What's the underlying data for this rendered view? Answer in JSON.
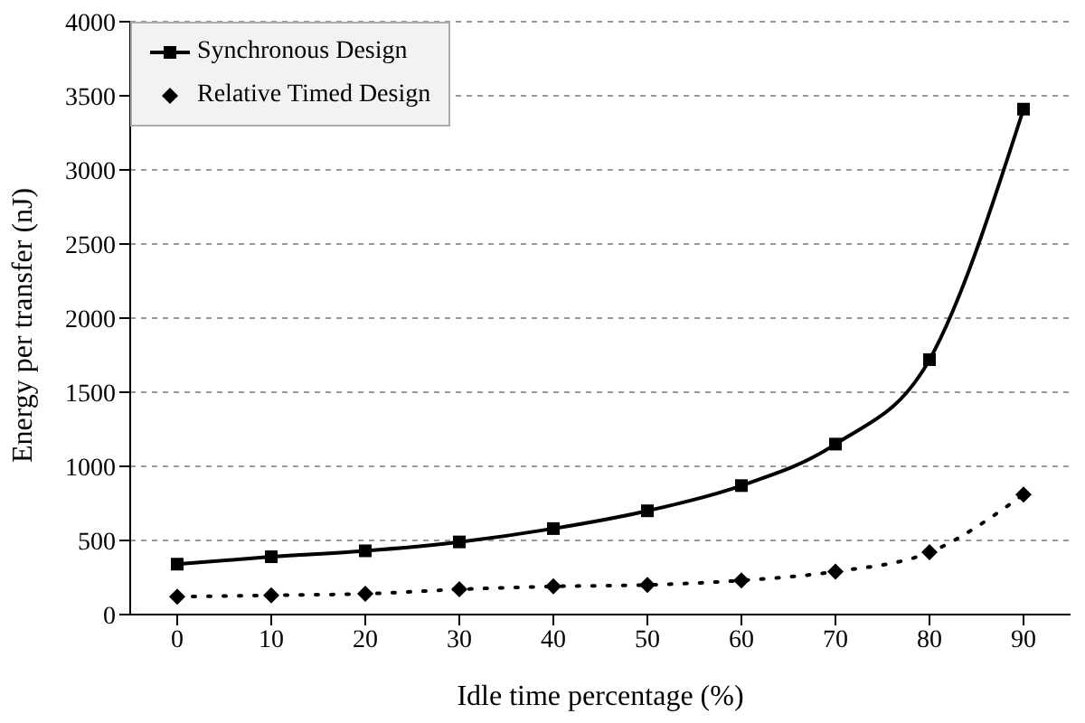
{
  "chart_data": {
    "type": "line",
    "xlabel": "Idle time percentage (%)",
    "ylabel": "Energy per transfer (nJ)",
    "categories": [
      "0",
      "10",
      "20",
      "30",
      "40",
      "50",
      "60",
      "70",
      "80",
      "90"
    ],
    "series": [
      {
        "name": "Synchronous Design",
        "color": "#000000",
        "marker": "square",
        "line_style": "solid",
        "values": [
          340,
          390,
          430,
          490,
          580,
          700,
          870,
          1150,
          1720,
          3410
        ]
      },
      {
        "name": "Relative Timed Design",
        "color": "#000000",
        "marker": "diamond",
        "line_style": "dotted",
        "values": [
          120,
          130,
          140,
          170,
          190,
          200,
          230,
          290,
          420,
          810
        ]
      }
    ],
    "ylim": [
      0,
      4000
    ],
    "yticks": [
      0,
      500,
      1000,
      1500,
      2000,
      2500,
      3000,
      3500,
      4000
    ],
    "grid": "y",
    "legend": "top left"
  }
}
